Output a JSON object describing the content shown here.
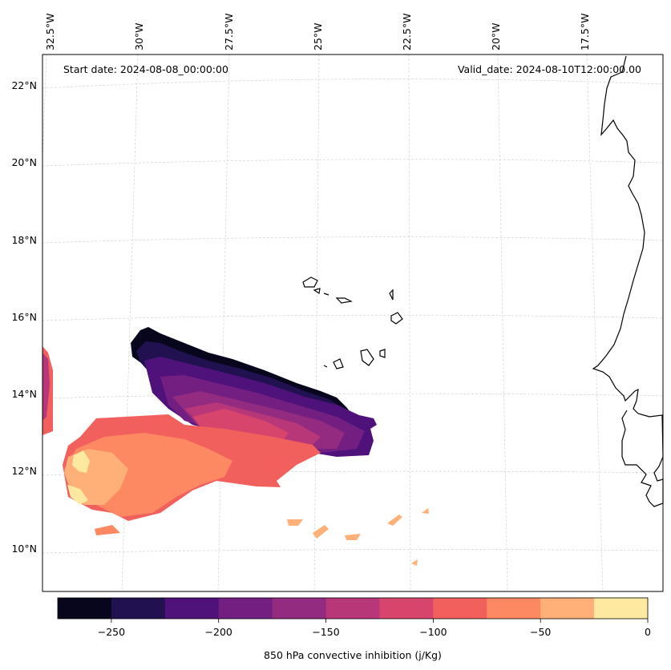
{
  "map": {
    "start_label": "Start date: 2024-08-08_00:00:00",
    "valid_label": "Valid_date: 2024-08-10T12:00:00.00",
    "lon_labels": [
      "32.5°W",
      "30°W",
      "27.5°W",
      "25°W",
      "22.5°W",
      "20°W",
      "17.5°W"
    ],
    "lat_labels": [
      "22°N",
      "20°N",
      "18°N",
      "16°N",
      "14°N",
      "12°N",
      "10°N"
    ]
  },
  "colorbar": {
    "label": "850 hPa convective inhibition (j/Kg)",
    "ticks": [
      "−250",
      "−200",
      "−150",
      "−100",
      "−50",
      "0"
    ],
    "colors": [
      "#07061c",
      "#221150",
      "#4f127b",
      "#721f81",
      "#932b80",
      "#b73779",
      "#d8456c",
      "#f1605d",
      "#fc8961",
      "#feb078",
      "#fee9a0"
    ]
  }
}
